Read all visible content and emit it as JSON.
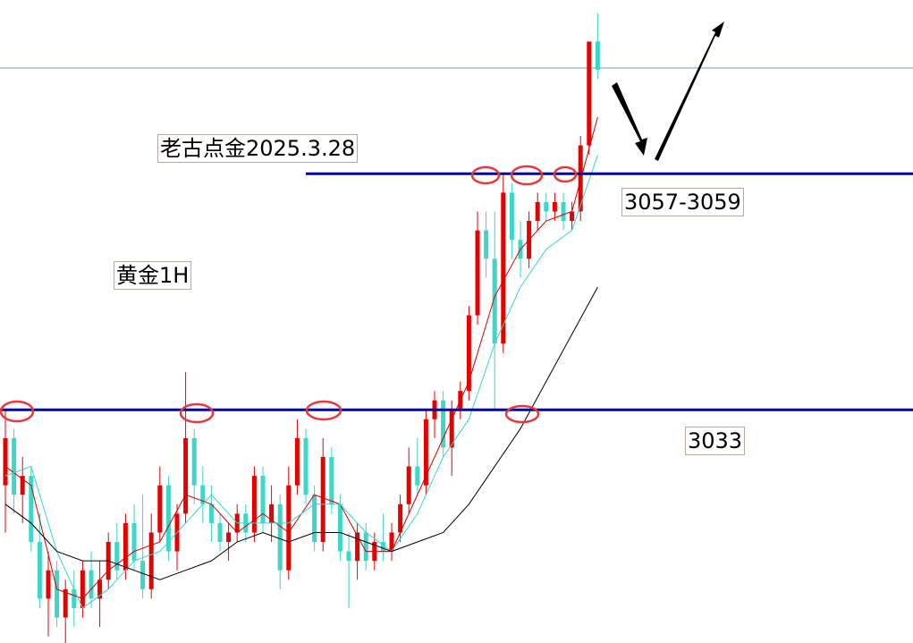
{
  "chart_data": {
    "type": "candlestick",
    "title": "老古点金2025.3.28",
    "subtitle": "黄金1H",
    "ylim": [
      3008.3,
      3076.4
    ],
    "up_color": "#e60000",
    "down_color": "#3cd7c8",
    "open": [
      3025,
      3030,
      3024,
      3026,
      3019,
      3013,
      3016,
      3011,
      3014,
      3012,
      3016,
      3013,
      3015,
      3019,
      3016,
      3021,
      3017,
      3014,
      3020,
      3025,
      3018,
      3022,
      3030,
      3025,
      3023,
      3021,
      3019,
      3020,
      3022,
      3020,
      3026,
      3021,
      3023,
      3016,
      3025,
      3030,
      3024,
      3019,
      3028,
      3023,
      3018,
      3017,
      3020,
      3017,
      3019,
      3018,
      3020,
      3023,
      3027,
      3025,
      3032,
      3034,
      3029,
      3033,
      3035,
      3043,
      3052,
      3049,
      3040,
      3056,
      3051,
      3049,
      3053,
      3055,
      3054,
      3055,
      3053,
      3054,
      3061,
      3072
    ],
    "high": [
      3033,
      3031,
      3028,
      3027,
      3022,
      3018,
      3017,
      3015,
      3016,
      3017,
      3018,
      3017,
      3020,
      3021,
      3022,
      3023,
      3024,
      3022,
      3027,
      3026,
      3023,
      3037,
      3031,
      3027,
      3025,
      3022,
      3021,
      3023,
      3023,
      3027,
      3027,
      3025,
      3024,
      3027,
      3032,
      3031,
      3025,
      3030,
      3029,
      3024,
      3020,
      3021,
      3021,
      3020,
      3022,
      3021,
      3024,
      3029,
      3030,
      3033,
      3035,
      3035,
      3034,
      3036,
      3044,
      3054,
      3054,
      3054,
      3058,
      3057,
      3053,
      3054,
      3056,
      3056,
      3056,
      3056,
      3055,
      3062,
      3072,
      3075
    ],
    "low": [
      3020,
      3022,
      3021,
      3018,
      3012,
      3009,
      3010,
      3008,
      3010,
      3011,
      3012,
      3010,
      3014,
      3015,
      3015,
      3016,
      3013,
      3013,
      3019,
      3017,
      3016,
      3021,
      3023,
      3021,
      3019,
      3018,
      3017,
      3019,
      3019,
      3019,
      3020,
      3019,
      3014,
      3015,
      3024,
      3023,
      3018,
      3018,
      3022,
      3017,
      3012,
      3015,
      3016,
      3016,
      3017,
      3017,
      3019,
      3022,
      3024,
      3024,
      3030,
      3028,
      3026,
      3032,
      3034,
      3042,
      3047,
      3033,
      3039,
      3049,
      3047,
      3048,
      3052,
      3053,
      3053,
      3052,
      3052,
      3053,
      3060,
      3068
    ],
    "close": [
      3030,
      3024,
      3026,
      3019,
      3013,
      3016,
      3011,
      3014,
      3012,
      3016,
      3013,
      3015,
      3019,
      3016,
      3021,
      3017,
      3014,
      3020,
      3025,
      3018,
      3022,
      3030,
      3025,
      3023,
      3021,
      3019,
      3020,
      3022,
      3020,
      3026,
      3021,
      3023,
      3016,
      3025,
      3030,
      3024,
      3019,
      3028,
      3023,
      3018,
      3017,
      3020,
      3017,
      3019,
      3018,
      3020,
      3023,
      3027,
      3025,
      3032,
      3034,
      3029,
      3033,
      3035,
      3043,
      3052,
      3049,
      3040,
      3056,
      3051,
      3049,
      3053,
      3055,
      3054,
      3055,
      3053,
      3054,
      3061,
      3072,
      3069
    ],
    "moving_averages": [
      {
        "color": "#d40000",
        "x": [
          0,
          3,
          6,
          9,
          12,
          15,
          18,
          21,
          24,
          27,
          30,
          33,
          36,
          39,
          42,
          45,
          48,
          51,
          54,
          57,
          60,
          63,
          66,
          69
        ],
        "values": [
          3027,
          3025,
          3014,
          3013,
          3016,
          3018,
          3019,
          3024,
          3023,
          3020,
          3022,
          3020,
          3024,
          3023,
          3018,
          3018,
          3024,
          3030,
          3036,
          3045,
          3050,
          3053,
          3054,
          3064
        ]
      },
      {
        "color": "#3cd7c8",
        "x": [
          0,
          3,
          6,
          9,
          12,
          15,
          18,
          21,
          24,
          27,
          30,
          33,
          36,
          39,
          42,
          45,
          48,
          51,
          54,
          57,
          60,
          63,
          66,
          69
        ],
        "values": [
          3026,
          3027,
          3018,
          3012,
          3014,
          3017,
          3018,
          3021,
          3024,
          3021,
          3021,
          3021,
          3023,
          3023,
          3020,
          3018,
          3022,
          3028,
          3032,
          3040,
          3046,
          3050,
          3052,
          3060
        ]
      },
      {
        "color": "#000000",
        "x": [
          0,
          3,
          6,
          9,
          12,
          15,
          18,
          21,
          24,
          27,
          30,
          33,
          36,
          39,
          42,
          45,
          48,
          51,
          54,
          57,
          60,
          63,
          66,
          69
        ],
        "values": [
          3023,
          3021,
          3018,
          3017,
          3017,
          3016,
          3015,
          3016,
          3017,
          3019,
          3020,
          3019,
          3020,
          3020,
          3019,
          3018,
          3019,
          3020,
          3023,
          3027,
          3031,
          3036,
          3041,
          3046
        ]
      }
    ],
    "levels": [
      {
        "value": 3033,
        "label": "3033",
        "color": "#0000b4"
      },
      {
        "value": 3058,
        "label": "3057-3059",
        "color": "#0000b4"
      }
    ],
    "price_line": 3069.2
  }
}
